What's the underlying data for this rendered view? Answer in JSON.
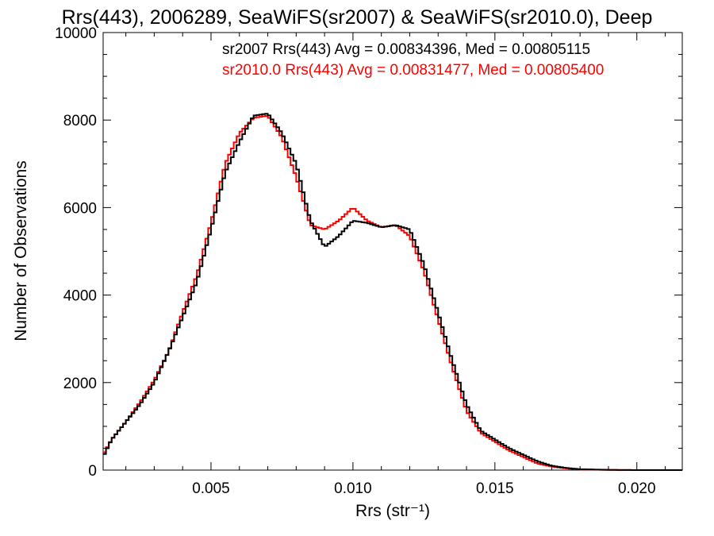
{
  "chart_data": {
    "type": "line",
    "title": "Rrs(443), 2006289, SeaWiFS(sr2007) & SeaWiFS(sr2010.0), Deep",
    "xlabel": "Rrs (str⁻¹)",
    "ylabel": "Number of Observations",
    "xlim": [
      0.0012,
      0.0216
    ],
    "ylim": [
      0,
      10000
    ],
    "xticks": [
      0.005,
      0.01,
      0.015,
      0.02
    ],
    "xtick_labels": [
      "0.005",
      "0.010",
      "0.015",
      "0.020"
    ],
    "yticks": [
      0,
      2000,
      4000,
      6000,
      8000,
      10000
    ],
    "ytick_labels": [
      "0",
      "2000",
      "4000",
      "6000",
      "8000",
      "10000"
    ],
    "grid": false,
    "legend_position": "top-right",
    "series": [
      {
        "name": "sr2007 Rrs(443) Avg = 0.00834396, Med = 0.00805115",
        "color": "#000000",
        "x": [
          0.0012,
          0.0015,
          0.002,
          0.0025,
          0.003,
          0.0035,
          0.004,
          0.0045,
          0.005,
          0.0055,
          0.006,
          0.0065,
          0.007,
          0.0075,
          0.008,
          0.0085,
          0.009,
          0.0095,
          0.01,
          0.0105,
          0.011,
          0.0115,
          0.012,
          0.0125,
          0.013,
          0.0135,
          0.014,
          0.0145,
          0.015,
          0.0155,
          0.016,
          0.0165,
          0.017,
          0.0175,
          0.018,
          0.019,
          0.02,
          0.0216
        ],
        "values": [
          300,
          700,
          1100,
          1500,
          2000,
          2700,
          3500,
          4300,
          5500,
          6800,
          7500,
          8100,
          8150,
          7700,
          7000,
          5700,
          5100,
          5350,
          5700,
          5650,
          5550,
          5600,
          5500,
          4700,
          3600,
          2500,
          1500,
          900,
          700,
          500,
          350,
          200,
          100,
          50,
          20,
          5,
          0,
          0
        ]
      },
      {
        "name": "sr2010.0 Rrs(443) Avg = 0.00831477, Med = 0.00805400",
        "color": "#ff0000",
        "x": [
          0.0012,
          0.0015,
          0.002,
          0.0025,
          0.003,
          0.0035,
          0.004,
          0.0045,
          0.005,
          0.0055,
          0.006,
          0.0065,
          0.007,
          0.0075,
          0.008,
          0.0085,
          0.009,
          0.0095,
          0.01,
          0.0105,
          0.011,
          0.0115,
          0.012,
          0.0125,
          0.013,
          0.0135,
          0.014,
          0.0145,
          0.015,
          0.0155,
          0.016,
          0.0165,
          0.017,
          0.0175,
          0.018,
          0.019,
          0.02,
          0.0216
        ],
        "values": [
          350,
          700,
          1100,
          1550,
          2050,
          2700,
          3600,
          4450,
          5650,
          7000,
          7700,
          8050,
          8100,
          7600,
          6700,
          5600,
          5500,
          5700,
          6000,
          5700,
          5550,
          5600,
          5350,
          4550,
          3450,
          2350,
          1350,
          850,
          650,
          450,
          300,
          150,
          80,
          40,
          15,
          5,
          0,
          0
        ]
      }
    ]
  }
}
